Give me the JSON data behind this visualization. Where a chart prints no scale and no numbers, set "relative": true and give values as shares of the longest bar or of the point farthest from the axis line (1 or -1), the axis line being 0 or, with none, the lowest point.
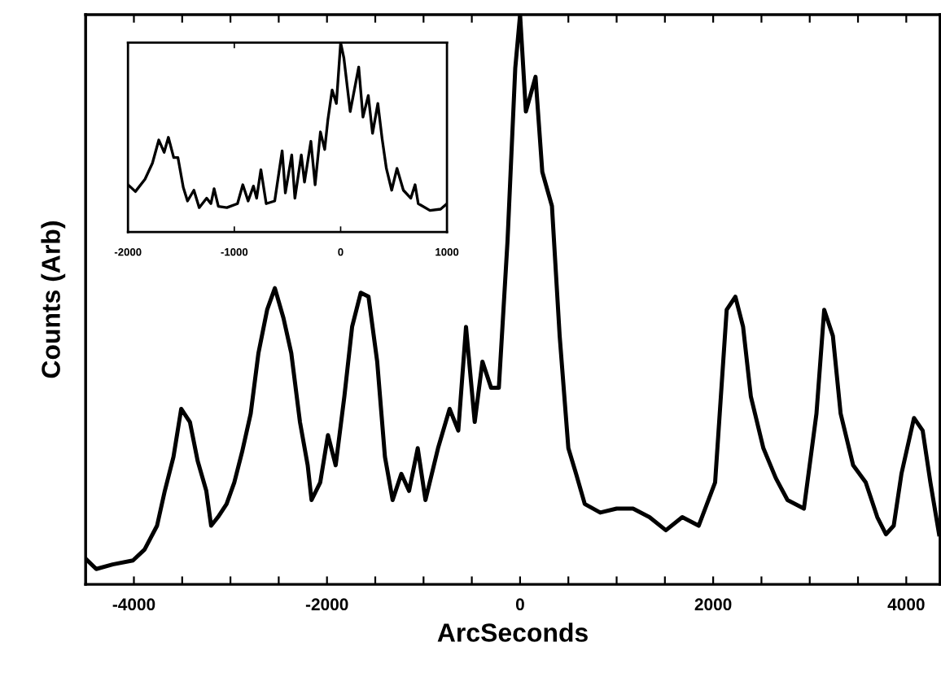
{
  "chart_data": [
    {
      "type": "line",
      "xlabel": "ArcSeconds",
      "ylabel": "Counts (Arb)",
      "relative": true,
      "grid": false,
      "legend": false,
      "marker": "none",
      "line_style": "solid",
      "xlim": [
        -4500,
        4350
      ],
      "xticks": [
        -4000,
        {
          "value": -3500,
          "label": null
        },
        {
          "value": -3000,
          "label": null
        },
        {
          "value": -2500,
          "label": null
        },
        -2000,
        {
          "value": -1500,
          "label": null
        },
        {
          "value": -1000,
          "label": null
        },
        {
          "value": -500,
          "label": null
        },
        0,
        {
          "value": 500,
          "label": null
        },
        {
          "value": 1000,
          "label": null
        },
        {
          "value": 1500,
          "label": null
        },
        2000,
        {
          "value": 2500,
          "label": null
        },
        {
          "value": 3000,
          "label": null
        },
        {
          "value": 3500,
          "label": null
        },
        4000
      ],
      "series": [
        {
          "color": "#000000",
          "x": [
            -4500,
            -4390,
            -4220,
            -4010,
            -3890,
            -3760,
            -3680,
            -3590,
            -3510,
            -3420,
            -3340,
            -3250,
            -3200,
            -3130,
            -3040,
            -2960,
            -2880,
            -2790,
            -2710,
            -2620,
            -2540,
            -2450,
            -2370,
            -2280,
            -2200,
            -2160,
            -2070,
            -1990,
            -1910,
            -1820,
            -1740,
            -1650,
            -1570,
            -1480,
            -1400,
            -1320,
            -1230,
            -1150,
            -1060,
            -980,
            -850,
            -730,
            -640,
            -560,
            -470,
            -390,
            -300,
            -220,
            -130,
            -50,
            0,
            60,
            160,
            230,
            330,
            410,
            500,
            580,
            670,
            830,
            1000,
            1170,
            1340,
            1510,
            1680,
            1850,
            2020,
            2140,
            2230,
            2310,
            2390,
            2520,
            2650,
            2770,
            2940,
            3070,
            3150,
            3240,
            3320,
            3450,
            3580,
            3700,
            3790,
            3870,
            3950,
            4080,
            4170,
            4250,
            4340
          ],
          "values": [
            0.045,
            0.027,
            0.035,
            0.042,
            0.061,
            0.103,
            0.164,
            0.224,
            0.308,
            0.285,
            0.217,
            0.164,
            0.103,
            0.118,
            0.141,
            0.179,
            0.232,
            0.3,
            0.406,
            0.482,
            0.52,
            0.467,
            0.406,
            0.285,
            0.209,
            0.148,
            0.179,
            0.262,
            0.209,
            0.33,
            0.452,
            0.512,
            0.505,
            0.391,
            0.224,
            0.148,
            0.194,
            0.164,
            0.239,
            0.148,
            0.239,
            0.308,
            0.27,
            0.452,
            0.285,
            0.391,
            0.345,
            0.345,
            0.603,
            0.906,
            1.0,
            0.83,
            0.891,
            0.724,
            0.664,
            0.436,
            0.239,
            0.194,
            0.141,
            0.126,
            0.133,
            0.133,
            0.118,
            0.095,
            0.118,
            0.103,
            0.179,
            0.482,
            0.505,
            0.452,
            0.33,
            0.239,
            0.186,
            0.148,
            0.133,
            0.3,
            0.482,
            0.436,
            0.3,
            0.209,
            0.179,
            0.118,
            0.088,
            0.103,
            0.194,
            0.292,
            0.27,
            0.179,
            0.088
          ]
        }
      ]
    },
    {
      "type": "line",
      "relative": true,
      "grid": false,
      "legend": false,
      "marker": "none",
      "line_style": "solid",
      "xlim": [
        -2000,
        1000
      ],
      "xticks": [
        -2000,
        -1000,
        0,
        1000
      ],
      "series": [
        {
          "color": "#000000",
          "x": [
            -2000,
            -1930,
            -1840,
            -1770,
            -1710,
            -1660,
            -1620,
            -1570,
            -1530,
            -1480,
            -1440,
            -1380,
            -1330,
            -1260,
            -1220,
            -1190,
            -1150,
            -1070,
            -970,
            -920,
            -870,
            -820,
            -790,
            -750,
            -700,
            -620,
            -550,
            -520,
            -460,
            -430,
            -370,
            -340,
            -280,
            -240,
            -190,
            -150,
            -120,
            -80,
            -40,
            0,
            30,
            90,
            170,
            210,
            260,
            300,
            350,
            390,
            430,
            480,
            530,
            590,
            660,
            700,
            730,
            840,
            940,
            1000
          ],
          "values": [
            0.25,
            0.214,
            0.279,
            0.364,
            0.486,
            0.421,
            0.5,
            0.393,
            0.393,
            0.236,
            0.164,
            0.221,
            0.129,
            0.179,
            0.15,
            0.229,
            0.136,
            0.129,
            0.15,
            0.25,
            0.164,
            0.243,
            0.179,
            0.329,
            0.15,
            0.164,
            0.429,
            0.207,
            0.407,
            0.179,
            0.407,
            0.264,
            0.479,
            0.25,
            0.529,
            0.436,
            0.593,
            0.75,
            0.679,
            1.0,
            0.921,
            0.636,
            0.871,
            0.607,
            0.721,
            0.521,
            0.679,
            0.493,
            0.336,
            0.221,
            0.336,
            0.221,
            0.179,
            0.25,
            0.15,
            0.114,
            0.121,
            0.15
          ]
        }
      ]
    }
  ]
}
